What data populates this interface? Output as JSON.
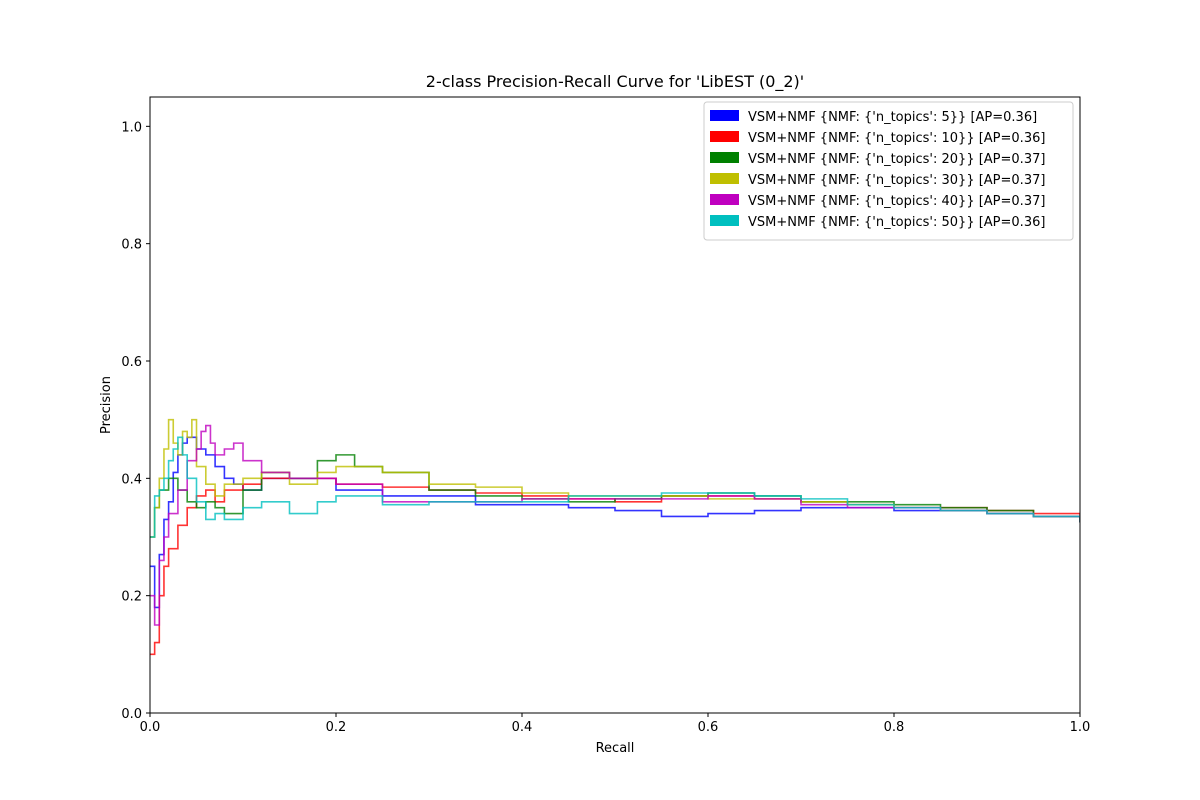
{
  "chart_data": {
    "type": "line",
    "title": "2-class Precision-Recall Curve for 'LibEST (0_2)'",
    "xlabel": "Recall",
    "ylabel": "Precision",
    "xlim": [
      0.0,
      1.0
    ],
    "ylim": [
      0.0,
      1.05
    ],
    "xticks": [
      "0.0",
      "0.2",
      "0.4",
      "0.6",
      "0.8",
      "1.0"
    ],
    "yticks": [
      "0.0",
      "0.2",
      "0.4",
      "0.6",
      "0.8",
      "1.0"
    ],
    "grid": false,
    "legend_position": "top-right",
    "series": [
      {
        "name": "VSM+NMF {NMF: {'n_topics': 5}} [AP=0.36]",
        "color": "#0000ff",
        "x": [
          0.0,
          0.005,
          0.01,
          0.015,
          0.02,
          0.025,
          0.03,
          0.035,
          0.04,
          0.05,
          0.06,
          0.07,
          0.08,
          0.09,
          0.1,
          0.12,
          0.15,
          0.2,
          0.25,
          0.3,
          0.35,
          0.4,
          0.45,
          0.5,
          0.55,
          0.6,
          0.65,
          0.7,
          0.75,
          0.8,
          0.85,
          0.9,
          0.95,
          1.0
        ],
        "y": [
          0.25,
          0.18,
          0.27,
          0.33,
          0.36,
          0.41,
          0.44,
          0.46,
          0.47,
          0.45,
          0.44,
          0.42,
          0.4,
          0.39,
          0.38,
          0.4,
          0.4,
          0.38,
          0.37,
          0.37,
          0.355,
          0.355,
          0.35,
          0.345,
          0.335,
          0.34,
          0.345,
          0.35,
          0.35,
          0.345,
          0.345,
          0.34,
          0.335,
          0.325
        ]
      },
      {
        "name": "VSM+NMF {NMF: {'n_topics': 10}} [AP=0.36]",
        "color": "#ff0000",
        "x": [
          0.0,
          0.005,
          0.01,
          0.015,
          0.02,
          0.03,
          0.04,
          0.05,
          0.06,
          0.07,
          0.08,
          0.1,
          0.12,
          0.15,
          0.2,
          0.25,
          0.3,
          0.35,
          0.4,
          0.45,
          0.5,
          0.55,
          0.6,
          0.65,
          0.7,
          0.75,
          0.8,
          0.85,
          0.9,
          0.95,
          1.0
        ],
        "y": [
          0.1,
          0.12,
          0.2,
          0.25,
          0.28,
          0.32,
          0.35,
          0.37,
          0.38,
          0.36,
          0.38,
          0.39,
          0.4,
          0.4,
          0.39,
          0.385,
          0.38,
          0.375,
          0.37,
          0.365,
          0.36,
          0.37,
          0.37,
          0.365,
          0.36,
          0.355,
          0.35,
          0.35,
          0.345,
          0.34,
          0.325
        ]
      },
      {
        "name": "VSM+NMF {NMF: {'n_topics': 20}} [AP=0.37]",
        "color": "#008000",
        "x": [
          0.0,
          0.005,
          0.01,
          0.02,
          0.03,
          0.04,
          0.05,
          0.06,
          0.07,
          0.08,
          0.1,
          0.12,
          0.15,
          0.18,
          0.2,
          0.22,
          0.25,
          0.3,
          0.35,
          0.4,
          0.45,
          0.5,
          0.55,
          0.6,
          0.65,
          0.7,
          0.75,
          0.8,
          0.85,
          0.9,
          0.95,
          1.0
        ],
        "y": [
          0.3,
          0.35,
          0.38,
          0.4,
          0.38,
          0.36,
          0.35,
          0.36,
          0.35,
          0.34,
          0.38,
          0.41,
          0.4,
          0.43,
          0.44,
          0.42,
          0.41,
          0.38,
          0.37,
          0.365,
          0.36,
          0.365,
          0.37,
          0.375,
          0.37,
          0.36,
          0.36,
          0.355,
          0.35,
          0.345,
          0.335,
          0.325
        ]
      },
      {
        "name": "VSM+NMF {NMF: {'n_topics': 30}} [AP=0.37]",
        "color": "#bfbf00",
        "x": [
          0.0,
          0.005,
          0.01,
          0.015,
          0.02,
          0.025,
          0.03,
          0.035,
          0.04,
          0.045,
          0.05,
          0.06,
          0.07,
          0.08,
          0.1,
          0.12,
          0.15,
          0.18,
          0.2,
          0.25,
          0.3,
          0.35,
          0.4,
          0.45,
          0.5,
          0.55,
          0.6,
          0.65,
          0.7,
          0.75,
          0.8,
          0.85,
          0.9,
          0.95,
          1.0
        ],
        "y": [
          0.3,
          0.35,
          0.4,
          0.45,
          0.5,
          0.46,
          0.44,
          0.48,
          0.47,
          0.5,
          0.42,
          0.39,
          0.37,
          0.39,
          0.4,
          0.41,
          0.39,
          0.41,
          0.42,
          0.41,
          0.39,
          0.385,
          0.375,
          0.37,
          0.37,
          0.37,
          0.365,
          0.365,
          0.36,
          0.355,
          0.35,
          0.345,
          0.34,
          0.335,
          0.325
        ]
      },
      {
        "name": "VSM+NMF {NMF: {'n_topics': 40}} [AP=0.37]",
        "color": "#bf00bf",
        "x": [
          0.0,
          0.005,
          0.01,
          0.015,
          0.02,
          0.03,
          0.04,
          0.05,
          0.055,
          0.06,
          0.065,
          0.07,
          0.08,
          0.09,
          0.1,
          0.12,
          0.15,
          0.2,
          0.25,
          0.3,
          0.35,
          0.4,
          0.45,
          0.5,
          0.55,
          0.6,
          0.65,
          0.7,
          0.75,
          0.8,
          0.85,
          0.9,
          0.95,
          1.0
        ],
        "y": [
          0.2,
          0.15,
          0.26,
          0.3,
          0.34,
          0.38,
          0.43,
          0.45,
          0.48,
          0.49,
          0.46,
          0.44,
          0.45,
          0.46,
          0.43,
          0.41,
          0.4,
          0.39,
          0.36,
          0.36,
          0.36,
          0.365,
          0.365,
          0.365,
          0.365,
          0.37,
          0.365,
          0.355,
          0.35,
          0.35,
          0.345,
          0.34,
          0.335,
          0.325
        ]
      },
      {
        "name": "VSM+NMF {NMF: {'n_topics': 50}} [AP=0.36]",
        "color": "#00bfbf",
        "x": [
          0.0,
          0.005,
          0.01,
          0.015,
          0.02,
          0.025,
          0.03,
          0.035,
          0.04,
          0.05,
          0.06,
          0.07,
          0.08,
          0.1,
          0.12,
          0.15,
          0.18,
          0.2,
          0.25,
          0.3,
          0.35,
          0.4,
          0.45,
          0.5,
          0.55,
          0.6,
          0.65,
          0.7,
          0.75,
          0.8,
          0.85,
          0.9,
          0.95,
          1.0
        ],
        "y": [
          0.3,
          0.37,
          0.38,
          0.4,
          0.43,
          0.45,
          0.47,
          0.44,
          0.4,
          0.36,
          0.33,
          0.34,
          0.33,
          0.35,
          0.36,
          0.34,
          0.36,
          0.37,
          0.355,
          0.36,
          0.36,
          0.36,
          0.37,
          0.37,
          0.375,
          0.375,
          0.37,
          0.365,
          0.355,
          0.35,
          0.345,
          0.34,
          0.335,
          0.325
        ]
      }
    ]
  }
}
